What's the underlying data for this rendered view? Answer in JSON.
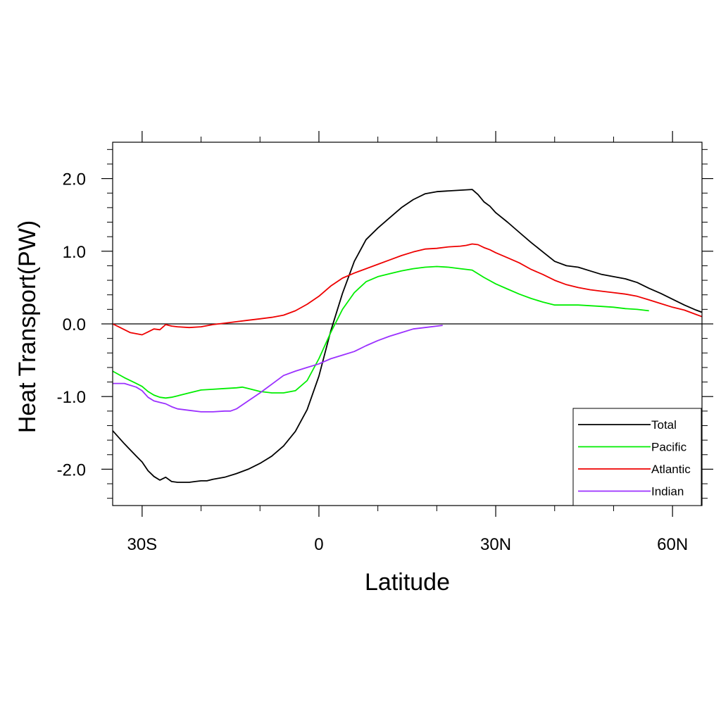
{
  "chart_data": {
    "type": "line",
    "xlabel": "Latitude",
    "ylabel": "Heat Transport(PW)",
    "xlim": [
      -35,
      65
    ],
    "ylim": [
      -2.5,
      2.5
    ],
    "x_ticks": [
      {
        "value": -30,
        "label": "30S"
      },
      {
        "value": 0,
        "label": "0"
      },
      {
        "value": 30,
        "label": "30N"
      },
      {
        "value": 60,
        "label": "60N"
      }
    ],
    "y_ticks": [
      {
        "value": 2,
        "label": "2.0"
      },
      {
        "value": 1,
        "label": "1.0"
      },
      {
        "value": 0,
        "label": "0.0"
      },
      {
        "value": -1,
        "label": "-1.0"
      },
      {
        "value": -2,
        "label": "-2.0"
      }
    ],
    "zero_line": true,
    "grid": false,
    "legend_position": "bottom-right",
    "series": [
      {
        "name": "Total",
        "color": "#000000",
        "x": [
          -35,
          -33,
          -31,
          -30,
          -29,
          -28,
          -27,
          -26,
          -25,
          -24,
          -23,
          -22,
          -21,
          -20,
          -19,
          -18,
          -16,
          -14,
          -12,
          -10,
          -8,
          -6,
          -4,
          -2,
          0,
          2,
          4,
          6,
          8,
          10,
          12,
          14,
          16,
          18,
          20,
          22,
          24,
          26,
          27,
          28,
          29,
          30,
          32,
          34,
          36,
          38,
          40,
          42,
          44,
          46,
          48,
          50,
          52,
          54,
          56,
          58,
          60,
          62,
          64,
          65
        ],
        "y": [
          -1.47,
          -1.65,
          -1.82,
          -1.9,
          -2.02,
          -2.1,
          -2.15,
          -2.11,
          -2.17,
          -2.18,
          -2.18,
          -2.18,
          -2.17,
          -2.16,
          -2.16,
          -2.14,
          -2.11,
          -2.06,
          -2.0,
          -1.92,
          -1.82,
          -1.68,
          -1.48,
          -1.18,
          -0.72,
          -0.1,
          0.42,
          0.86,
          1.16,
          1.32,
          1.46,
          1.6,
          1.71,
          1.79,
          1.82,
          1.83,
          1.84,
          1.85,
          1.78,
          1.68,
          1.62,
          1.53,
          1.4,
          1.26,
          1.12,
          0.99,
          0.86,
          0.8,
          0.78,
          0.73,
          0.68,
          0.65,
          0.62,
          0.57,
          0.49,
          0.42,
          0.34,
          0.26,
          0.19,
          0.16
        ]
      },
      {
        "name": "Pacific",
        "color": "#00ee00",
        "x": [
          -35,
          -33,
          -31,
          -30,
          -29,
          -28,
          -27,
          -26,
          -25,
          -24,
          -22,
          -20,
          -18,
          -16,
          -14,
          -13,
          -12,
          -10,
          -8,
          -6,
          -4,
          -2,
          0,
          2,
          4,
          6,
          8,
          10,
          12,
          14,
          16,
          18,
          20,
          22,
          24,
          26,
          28,
          30,
          32,
          34,
          36,
          38,
          40,
          42,
          44,
          46,
          48,
          50,
          52,
          54,
          56
        ],
        "y": [
          -0.65,
          -0.74,
          -0.82,
          -0.86,
          -0.93,
          -0.98,
          -1.01,
          -1.02,
          -1.01,
          -0.99,
          -0.95,
          -0.91,
          -0.9,
          -0.89,
          -0.88,
          -0.87,
          -0.89,
          -0.93,
          -0.95,
          -0.95,
          -0.92,
          -0.78,
          -0.48,
          -0.12,
          0.2,
          0.43,
          0.58,
          0.65,
          0.69,
          0.73,
          0.76,
          0.78,
          0.79,
          0.78,
          0.76,
          0.74,
          0.64,
          0.55,
          0.48,
          0.41,
          0.35,
          0.3,
          0.26,
          0.26,
          0.26,
          0.25,
          0.24,
          0.23,
          0.21,
          0.2,
          0.18
        ]
      },
      {
        "name": "Atlantic",
        "color": "#ee0000",
        "x": [
          -35,
          -34,
          -32,
          -30,
          -29,
          -28,
          -27,
          -26,
          -25,
          -24,
          -22,
          -20,
          -18,
          -16,
          -14,
          -12,
          -10,
          -8,
          -6,
          -4,
          -2,
          0,
          2,
          4,
          6,
          8,
          10,
          12,
          14,
          16,
          18,
          20,
          22,
          24,
          25,
          26,
          27,
          28,
          29,
          30,
          32,
          34,
          36,
          38,
          40,
          42,
          44,
          46,
          48,
          50,
          52,
          54,
          56,
          58,
          60,
          62,
          64,
          65
        ],
        "y": [
          0.0,
          -0.04,
          -0.12,
          -0.15,
          -0.11,
          -0.07,
          -0.08,
          -0.01,
          -0.03,
          -0.04,
          -0.05,
          -0.04,
          -0.01,
          0.01,
          0.03,
          0.05,
          0.07,
          0.09,
          0.12,
          0.18,
          0.27,
          0.38,
          0.52,
          0.63,
          0.7,
          0.76,
          0.82,
          0.88,
          0.94,
          0.99,
          1.03,
          1.04,
          1.06,
          1.07,
          1.08,
          1.1,
          1.09,
          1.05,
          1.02,
          0.98,
          0.91,
          0.84,
          0.75,
          0.68,
          0.6,
          0.54,
          0.5,
          0.47,
          0.45,
          0.43,
          0.41,
          0.38,
          0.33,
          0.28,
          0.23,
          0.19,
          0.13,
          0.1
        ]
      },
      {
        "name": "Indian",
        "color": "#9b30ff",
        "x": [
          -35,
          -33,
          -31,
          -30,
          -29,
          -28,
          -27,
          -26,
          -25,
          -24,
          -22,
          -20,
          -18,
          -16,
          -15,
          -14,
          -12,
          -10,
          -8,
          -6,
          -4,
          -2,
          0,
          2,
          4,
          6,
          8,
          10,
          12,
          14,
          16,
          18,
          20,
          21
        ],
        "y": [
          -0.82,
          -0.82,
          -0.87,
          -0.92,
          -1.01,
          -1.06,
          -1.08,
          -1.1,
          -1.14,
          -1.17,
          -1.19,
          -1.21,
          -1.21,
          -1.2,
          -1.2,
          -1.17,
          -1.06,
          -0.95,
          -0.83,
          -0.71,
          -0.65,
          -0.6,
          -0.55,
          -0.48,
          -0.43,
          -0.38,
          -0.3,
          -0.23,
          -0.17,
          -0.12,
          -0.07,
          -0.05,
          -0.03,
          -0.02
        ]
      }
    ]
  }
}
